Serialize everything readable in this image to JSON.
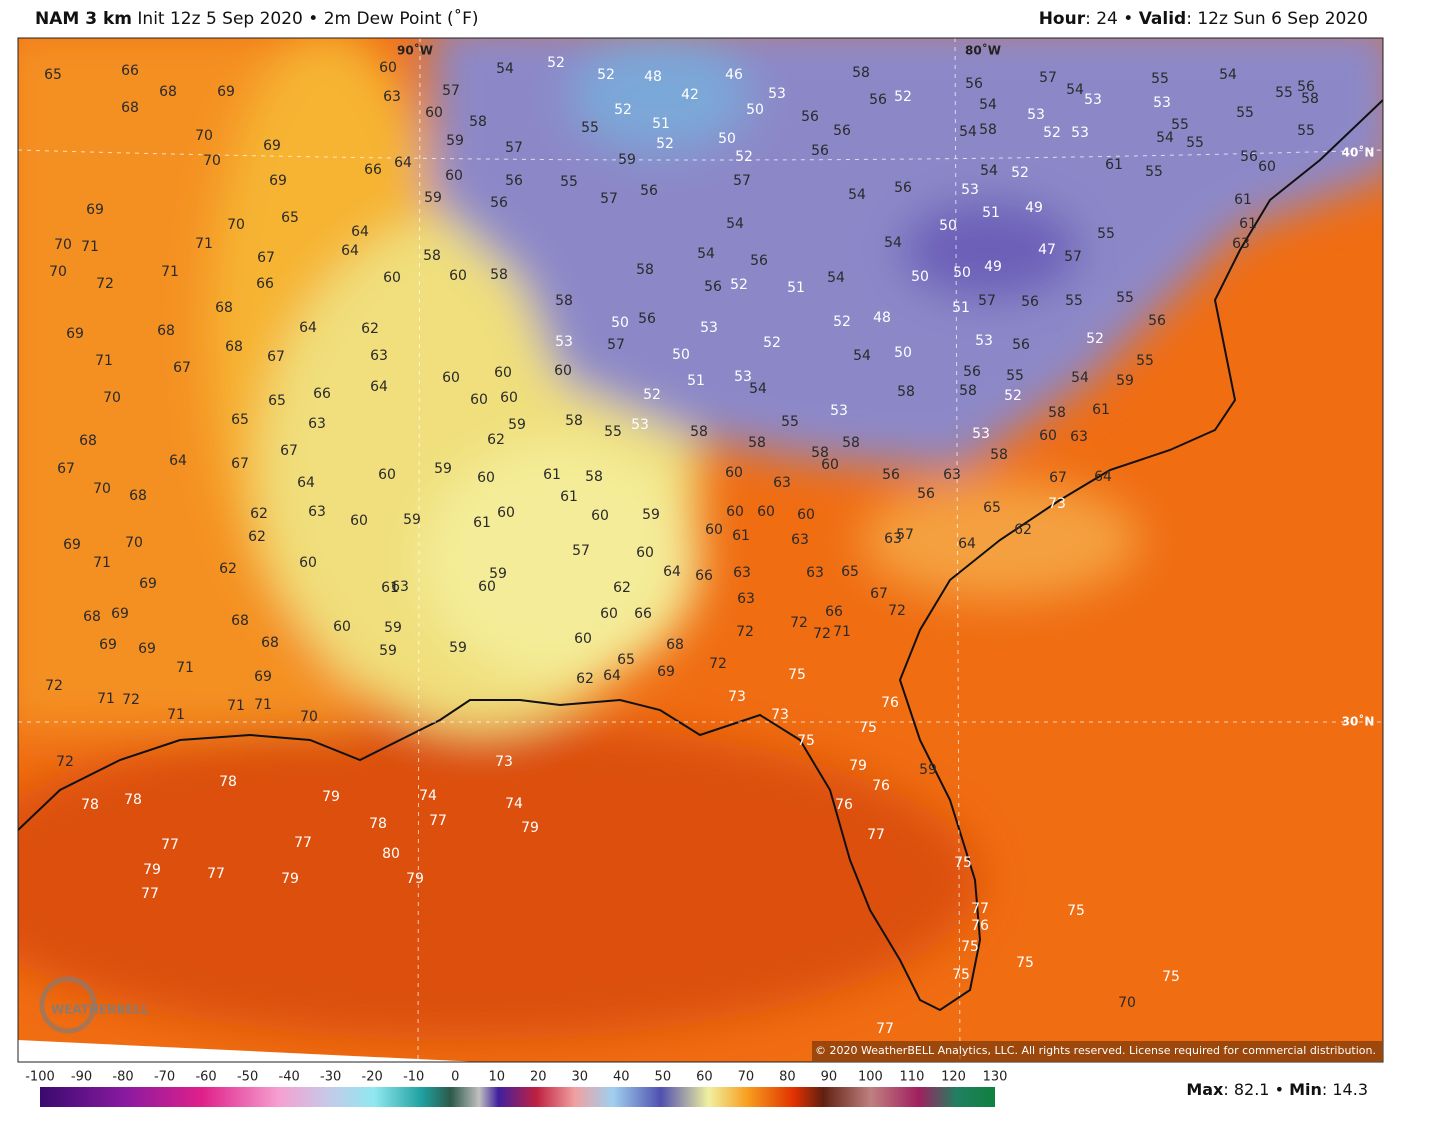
{
  "header": {
    "model": "NAM 3 km",
    "detail": "Init 12z 5 Sep 2020 • 2m Dew Point (˚F)",
    "hour_label": "Hour",
    "hour_text": ": 24 • ",
    "valid_label": "Valid",
    "valid_text": ": 12z Sun 6 Sep 2020"
  },
  "map": {
    "grid_labels": [
      "90˚W",
      "80˚W",
      "40˚N",
      "30˚N"
    ],
    "stations": [
      65,
      66,
      68,
      69,
      68,
      70,
      69,
      70,
      69,
      69,
      70,
      70,
      71,
      70,
      72,
      71,
      71,
      67,
      66,
      65,
      68,
      64,
      69,
      71,
      68,
      68,
      67,
      67,
      70,
      65,
      65,
      66,
      63,
      68,
      67,
      64,
      67,
      64,
      67,
      70,
      68,
      62,
      63,
      62,
      69,
      70,
      71,
      69,
      62,
      60,
      68,
      69,
      68,
      69,
      69,
      68,
      71,
      69,
      72,
      71,
      72,
      71,
      71,
      71,
      70,
      72,
      78,
      78,
      78,
      79,
      78,
      74,
      77,
      80,
      79,
      74,
      79,
      73,
      77,
      77,
      79,
      77,
      79,
      77,
      60,
      57,
      60,
      63,
      58,
      59,
      57,
      60,
      56,
      59,
      56,
      64,
      66,
      64,
      64,
      60,
      58,
      60,
      58,
      62,
      63,
      64,
      60,
      60,
      60,
      60,
      60,
      59,
      62,
      58,
      59,
      60,
      60,
      59,
      60,
      61,
      60,
      61,
      61,
      58,
      60,
      59,
      57,
      60,
      63,
      61,
      60,
      59,
      62,
      60,
      66,
      60,
      59,
      59,
      60,
      59,
      65,
      64,
      62,
      69,
      68,
      64,
      54,
      52,
      52,
      48,
      42,
      46,
      52,
      51,
      52,
      55,
      59,
      57,
      55,
      56,
      50,
      53,
      50,
      52,
      57,
      56,
      56,
      56,
      58,
      56,
      52,
      54,
      56,
      54,
      56,
      54,
      56,
      52,
      51,
      54,
      58,
      58,
      50,
      56,
      53,
      50,
      51,
      52,
      53,
      57,
      52,
      52,
      48,
      54,
      50,
      53,
      54,
      55,
      53,
      53,
      55,
      58,
      58,
      58,
      58,
      60,
      58,
      58,
      56,
      55,
      52,
      53,
      58,
      60,
      63,
      58,
      61,
      54,
      59,
      55,
      53,
      56,
      52,
      51,
      57,
      56,
      55,
      55,
      56,
      50,
      50,
      49,
      50,
      51,
      49,
      47,
      57,
      55,
      53,
      54,
      54,
      52,
      57,
      54,
      53,
      53,
      52,
      53,
      54,
      58,
      56,
      54,
      55,
      53,
      54,
      54,
      55,
      55,
      55,
      55,
      56,
      58,
      55,
      55,
      61,
      56,
      60,
      61,
      61,
      63,
      60,
      63,
      60,
      60,
      60,
      60,
      61,
      63,
      63,
      63,
      65,
      63,
      66,
      66,
      67,
      72,
      72,
      72,
      72,
      71,
      72,
      75,
      73,
      73,
      75,
      75,
      79,
      76,
      76,
      76,
      77,
      59,
      63,
      57,
      56,
      56,
      63,
      65,
      64,
      67,
      64,
      62,
      73,
      75,
      77,
      76,
      75,
      75,
      75,
      75,
      70,
      75,
      77
    ],
    "copyright": "© 2020 WeatherBELL Analytics, LLC. All rights reserved. License required for commercial distribution.",
    "logo": "WEATHERBELL"
  },
  "colorbar": {
    "ticks": [
      -100,
      -90,
      -80,
      -70,
      -60,
      -50,
      -40,
      -30,
      -20,
      -10,
      0,
      10,
      20,
      30,
      40,
      50,
      60,
      70,
      80,
      90,
      100,
      110,
      120,
      130
    ]
  },
  "footer": {
    "max_label": "Max",
    "max": 82.1,
    "min_label": "Min",
    "min": 14.3
  }
}
